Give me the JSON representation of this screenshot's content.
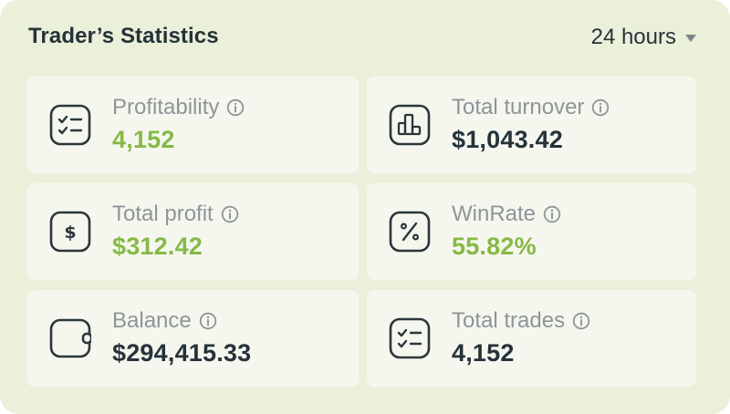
{
  "header": {
    "title": "Trader’s Statistics",
    "period": "24 hours"
  },
  "colors": {
    "panel_bg": "#ebf0db",
    "card_bg": "#f5f7ef",
    "positive": "#86b945",
    "text_dark": "#25323a",
    "text_muted": "#8d9597"
  },
  "cards": [
    {
      "label": "Profitability",
      "value": "4,152",
      "icon": "checklist-icon",
      "value_color": "green"
    },
    {
      "label": "Total turnover",
      "value": "$1,043.42",
      "icon": "bar-chart-icon",
      "value_color": "dark"
    },
    {
      "label": "Total profit",
      "value": "$312.42",
      "icon": "dollar-icon",
      "value_color": "green"
    },
    {
      "label": "WinRate",
      "value": "55.82%",
      "icon": "percent-icon",
      "value_color": "green"
    },
    {
      "label": "Balance",
      "value": "$294,415.33",
      "icon": "wallet-icon",
      "value_color": "dark"
    },
    {
      "label": "Total trades",
      "value": "4,152",
      "icon": "checklist-icon",
      "value_color": "dark"
    }
  ]
}
